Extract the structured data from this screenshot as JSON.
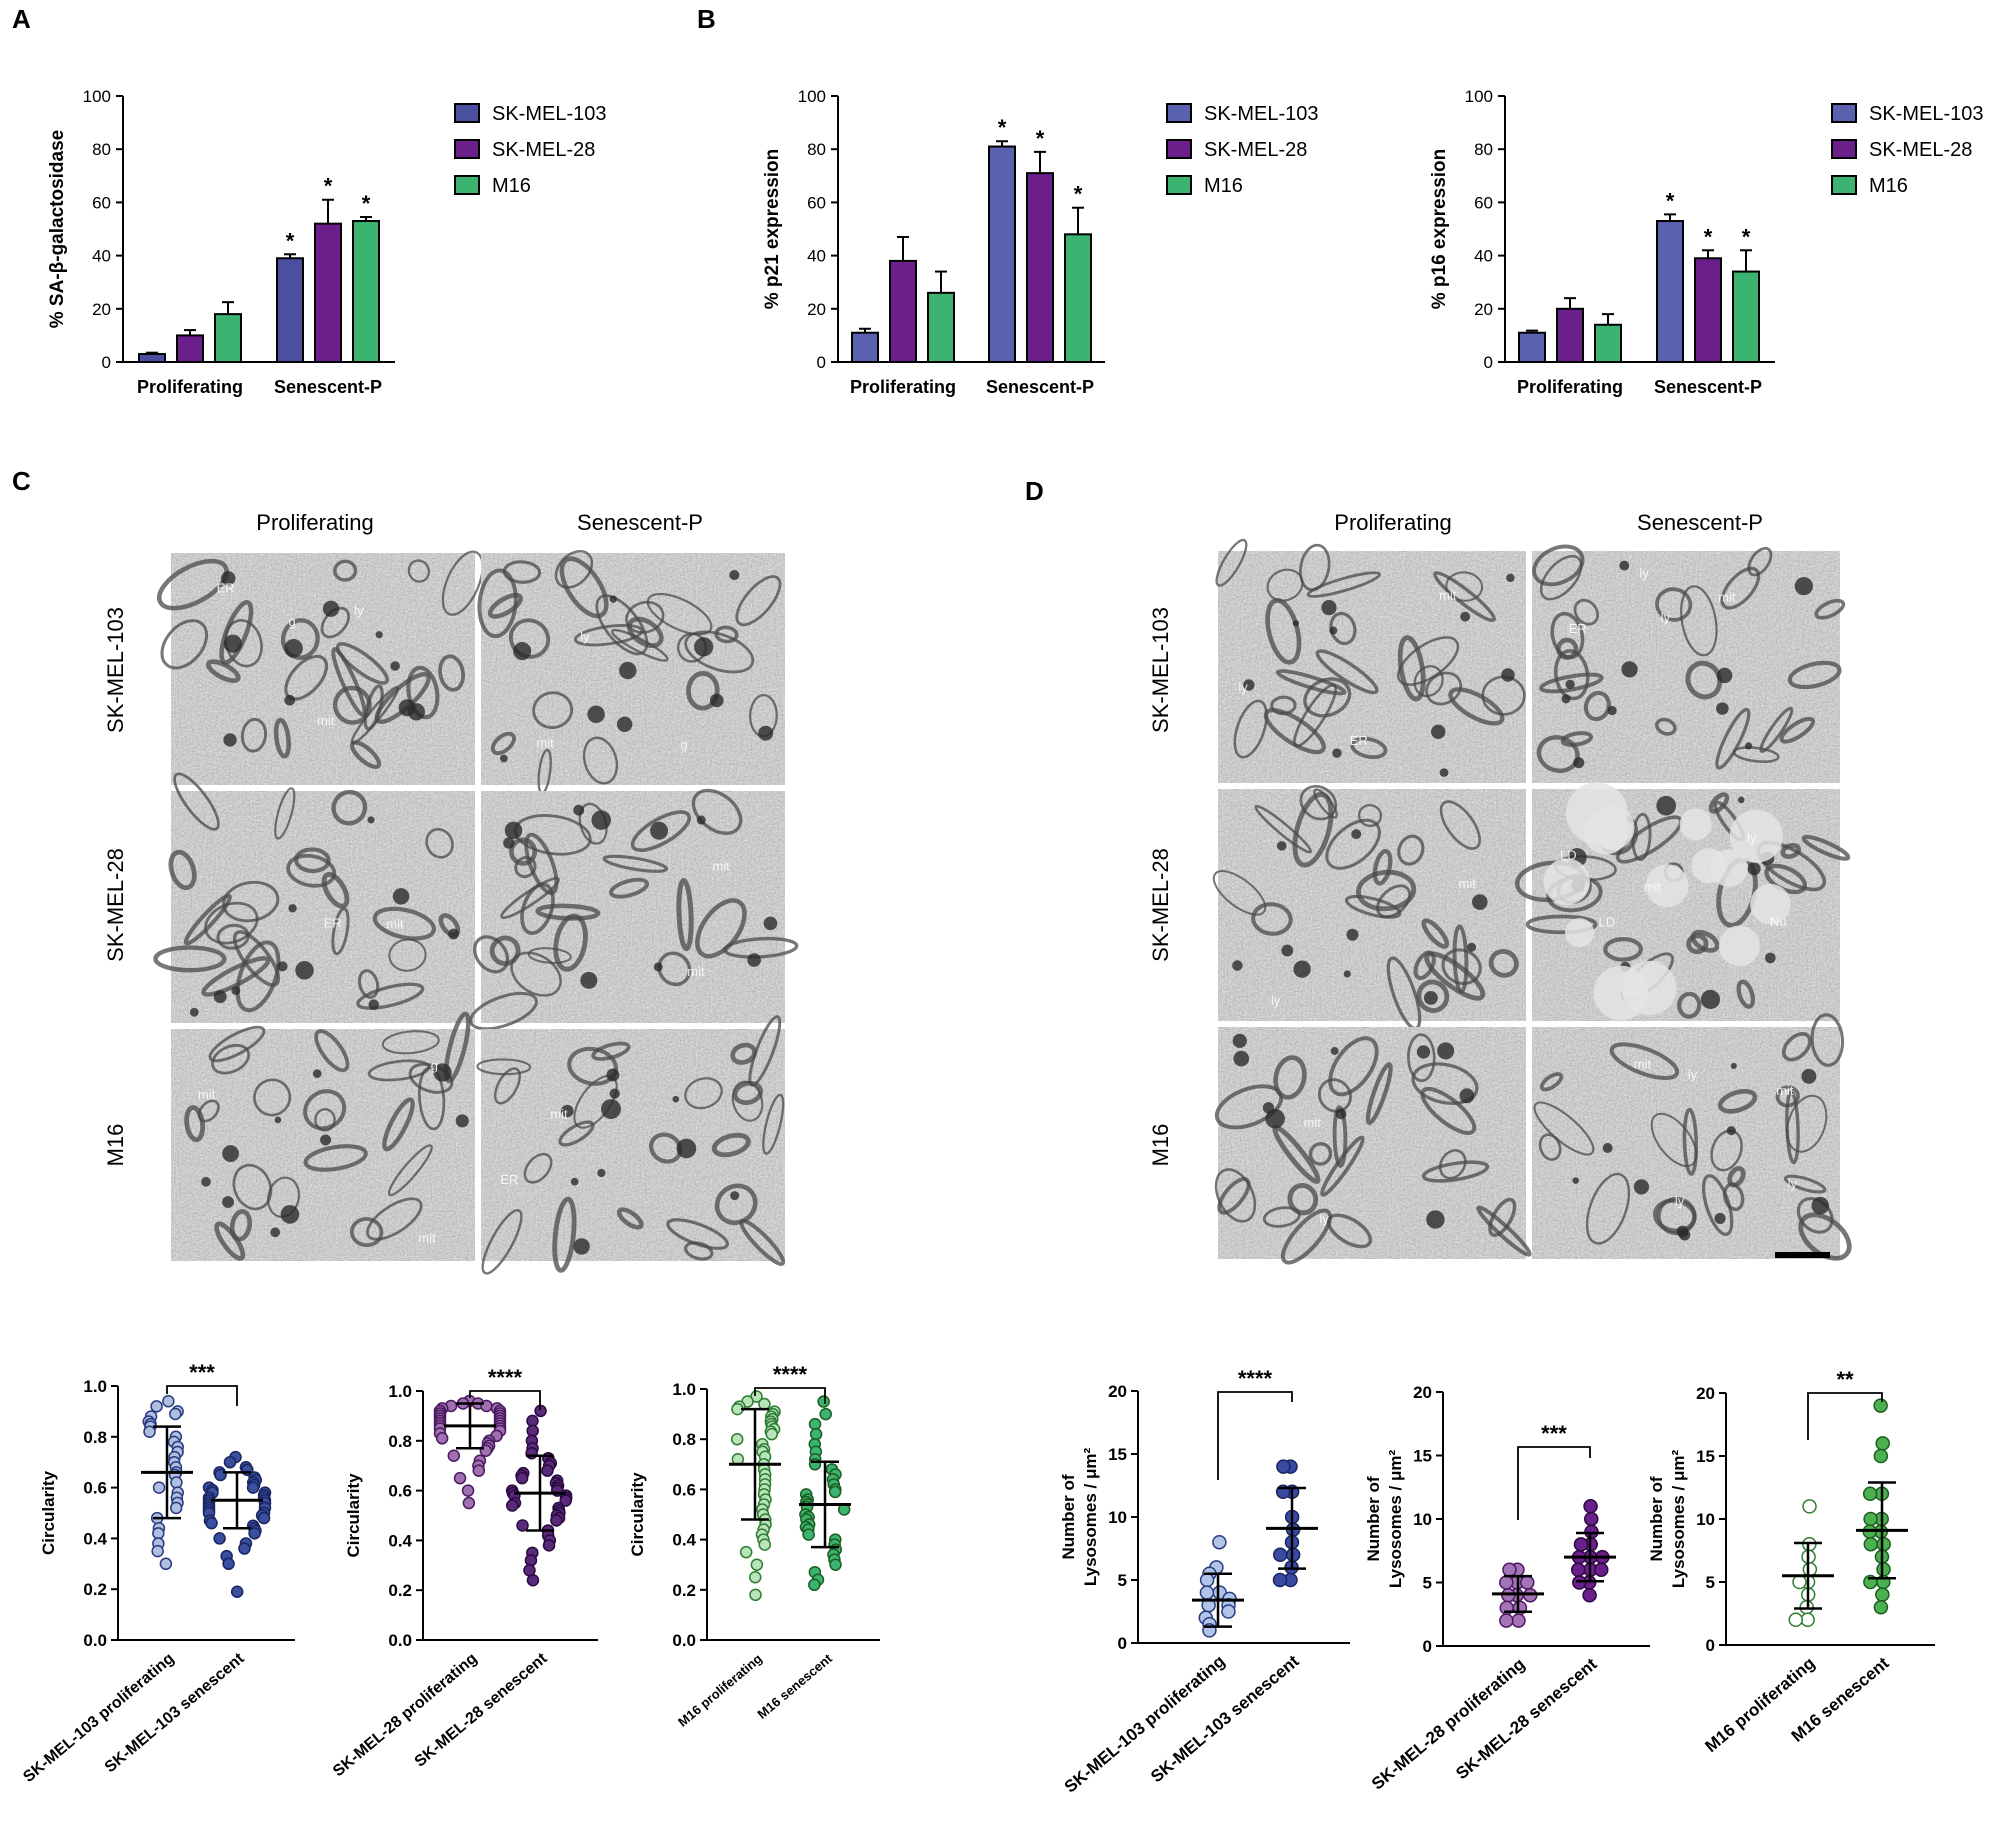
{
  "panels": {
    "A": {
      "letter": "A"
    },
    "B": {
      "letter": "B"
    },
    "C": {
      "letter": "C",
      "col_labels": [
        "Proliferating",
        "Senescent-P"
      ],
      "row_labels": [
        "SK-MEL-103",
        "SK-MEL-28",
        "M16"
      ]
    },
    "D": {
      "letter": "D",
      "col_labels": [
        "Proliferating",
        "Senescent-P"
      ],
      "row_labels": [
        "SK-MEL-103",
        "SK-MEL-28",
        "M16"
      ]
    }
  },
  "em_annotations": {
    "C": [
      [
        "ER",
        "ly",
        "mit",
        "g"
      ],
      [
        "ly",
        "g",
        "mit"
      ],
      [
        "ER",
        "mit"
      ],
      [
        "mit",
        "mit"
      ],
      [
        "g",
        "mit",
        "mit"
      ],
      [
        "mit",
        "ER"
      ]
    ],
    "D": [
      [
        "ER",
        "ly",
        "mit"
      ],
      [
        "mit",
        "ER",
        "ly",
        "ly"
      ],
      [
        "mit",
        "ly"
      ],
      [
        "ly",
        "LD",
        "LD",
        "mit",
        "Nu"
      ],
      [
        "ly",
        "mit"
      ],
      [
        "ly",
        "mit",
        "ly",
        "ly",
        "mit"
      ]
    ]
  },
  "colors": {
    "sk103": "#4a4fa0",
    "sk28": "#6a1f8a",
    "m16": "#3cb371"
  },
  "chart_data": [
    {
      "id": "A",
      "type": "bar",
      "categories": [
        "Proliferating",
        "Senescent-P"
      ],
      "ylabel": "% SA-β-galactosidase",
      "ylim": [
        0,
        100
      ],
      "yticks": [
        0,
        20,
        40,
        60,
        80,
        100
      ],
      "series": [
        {
          "name": "SK-MEL-103",
          "color": "#4a4fa0",
          "values": [
            3,
            39
          ],
          "errors": [
            0.5,
            1.5
          ],
          "sig": [
            "",
            "*"
          ]
        },
        {
          "name": "SK-MEL-28",
          "color": "#6a1f8a",
          "values": [
            10,
            52
          ],
          "errors": [
            2,
            9
          ],
          "sig": [
            "",
            "*"
          ]
        },
        {
          "name": "M16",
          "color": "#3cb371",
          "values": [
            18,
            53
          ],
          "errors": [
            4.5,
            1.5
          ],
          "sig": [
            "",
            "*"
          ]
        }
      ],
      "legend": "right"
    },
    {
      "id": "B1",
      "type": "bar",
      "categories": [
        "Proliferating",
        "Senescent-P"
      ],
      "ylabel": "% p21 expression",
      "ylim": [
        0,
        100
      ],
      "yticks": [
        0,
        20,
        40,
        60,
        80,
        100
      ],
      "series": [
        {
          "name": "SK-MEL-103",
          "color": "#5a62b0",
          "values": [
            11,
            81
          ],
          "errors": [
            1.5,
            2
          ],
          "sig": [
            "",
            "*"
          ]
        },
        {
          "name": "SK-MEL-28",
          "color": "#6a1f8a",
          "values": [
            38,
            71
          ],
          "errors": [
            9,
            8
          ],
          "sig": [
            "",
            "*"
          ]
        },
        {
          "name": "M16",
          "color": "#3cb371",
          "values": [
            26,
            48
          ],
          "errors": [
            8,
            10
          ],
          "sig": [
            "",
            "*"
          ]
        }
      ],
      "legend": "right"
    },
    {
      "id": "B2",
      "type": "bar",
      "categories": [
        "Proliferating",
        "Senescent-P"
      ],
      "ylabel": "% p16 expression",
      "ylim": [
        0,
        100
      ],
      "yticks": [
        0,
        20,
        40,
        60,
        80,
        100
      ],
      "series": [
        {
          "name": "SK-MEL-103",
          "color": "#5a62b0",
          "values": [
            11,
            53
          ],
          "errors": [
            0.8,
            2.5
          ],
          "sig": [
            "",
            "*"
          ]
        },
        {
          "name": "SK-MEL-28",
          "color": "#6a1f8a",
          "values": [
            20,
            39
          ],
          "errors": [
            4,
            3
          ],
          "sig": [
            "",
            "*"
          ]
        },
        {
          "name": "M16",
          "color": "#3cb371",
          "values": [
            14,
            34
          ],
          "errors": [
            4,
            8
          ],
          "sig": [
            "",
            "*"
          ]
        }
      ],
      "legend": "right"
    },
    {
      "id": "C1",
      "type": "scatter",
      "categories": [
        "SK-MEL-103 proliferating",
        "SK-MEL-103 senescent"
      ],
      "ylabel": "Circularity",
      "ylim": [
        0,
        1.0
      ],
      "yticks": [
        0.0,
        0.2,
        0.4,
        0.6,
        0.8,
        1.0
      ],
      "ytick_labels": [
        "0.0",
        "0.2",
        "0.4",
        "0.6",
        "0.8",
        "1.0"
      ],
      "groups": [
        {
          "fill": "#aebfe0",
          "edge": "#2a3a80",
          "mean": 0.66,
          "sd": 0.18,
          "values": [
            0.94,
            0.92,
            0.9,
            0.89,
            0.88,
            0.86,
            0.85,
            0.84,
            0.82,
            0.8,
            0.78,
            0.76,
            0.74,
            0.72,
            0.7,
            0.68,
            0.66,
            0.65,
            0.62,
            0.6,
            0.58,
            0.56,
            0.54,
            0.52,
            0.48,
            0.44,
            0.42,
            0.38,
            0.35,
            0.3
          ]
        },
        {
          "fill": "#3a4fa0",
          "edge": "#1a2560",
          "mean": 0.55,
          "sd": 0.11,
          "values": [
            0.72,
            0.7,
            0.68,
            0.67,
            0.66,
            0.65,
            0.64,
            0.63,
            0.62,
            0.61,
            0.6,
            0.6,
            0.59,
            0.58,
            0.58,
            0.57,
            0.56,
            0.56,
            0.55,
            0.55,
            0.54,
            0.54,
            0.53,
            0.52,
            0.52,
            0.51,
            0.5,
            0.5,
            0.49,
            0.48,
            0.47,
            0.46,
            0.45,
            0.44,
            0.43,
            0.42,
            0.4,
            0.38,
            0.36,
            0.33,
            0.3,
            0.19
          ]
        }
      ],
      "sig": "***"
    },
    {
      "id": "C2",
      "type": "scatter",
      "categories": [
        "SK-MEL-28 proliferating",
        "SK-MEL-28 senescent"
      ],
      "ylabel": "Circularity",
      "ylim": [
        0,
        1.0
      ],
      "yticks": [
        0.0,
        0.2,
        0.4,
        0.6,
        0.8,
        1.0
      ],
      "ytick_labels": [
        "0.0",
        "0.2",
        "0.4",
        "0.6",
        "0.8",
        "1.0"
      ],
      "groups": [
        {
          "fill": "#a070b0",
          "edge": "#4a1a60",
          "mean": 0.86,
          "sd": 0.09,
          "values": [
            0.96,
            0.95,
            0.95,
            0.94,
            0.94,
            0.93,
            0.93,
            0.92,
            0.92,
            0.92,
            0.91,
            0.91,
            0.9,
            0.9,
            0.9,
            0.89,
            0.89,
            0.88,
            0.88,
            0.87,
            0.87,
            0.86,
            0.86,
            0.85,
            0.85,
            0.84,
            0.83,
            0.82,
            0.81,
            0.8,
            0.79,
            0.78,
            0.77,
            0.76,
            0.74,
            0.72,
            0.7,
            0.68,
            0.65,
            0.6,
            0.55
          ]
        },
        {
          "fill": "#5a2a7a",
          "edge": "#2a0a40",
          "mean": 0.59,
          "sd": 0.15,
          "values": [
            0.92,
            0.88,
            0.84,
            0.8,
            0.77,
            0.75,
            0.73,
            0.71,
            0.7,
            0.68,
            0.67,
            0.66,
            0.65,
            0.64,
            0.63,
            0.62,
            0.61,
            0.6,
            0.6,
            0.59,
            0.58,
            0.58,
            0.57,
            0.56,
            0.55,
            0.54,
            0.53,
            0.52,
            0.51,
            0.5,
            0.49,
            0.48,
            0.46,
            0.44,
            0.42,
            0.4,
            0.38,
            0.35,
            0.32,
            0.28,
            0.24
          ]
        }
      ],
      "sig": "****"
    },
    {
      "id": "C3",
      "type": "scatter",
      "categories": [
        "M16 proliferating",
        "M16 senescent"
      ],
      "ylabel": "Circularity",
      "ylim": [
        0,
        1.0
      ],
      "yticks": [
        0.0,
        0.2,
        0.4,
        0.6,
        0.8,
        1.0
      ],
      "ytick_labels": [
        "0.0",
        "0.2",
        "0.4",
        "0.6",
        "0.8",
        "1.0"
      ],
      "groups": [
        {
          "fill": "#b9e3b9",
          "edge": "#2e7d32",
          "mean": 0.7,
          "sd": 0.22,
          "values": [
            0.97,
            0.95,
            0.94,
            0.93,
            0.92,
            0.91,
            0.9,
            0.89,
            0.88,
            0.87,
            0.86,
            0.85,
            0.84,
            0.83,
            0.82,
            0.8,
            0.78,
            0.76,
            0.75,
            0.73,
            0.72,
            0.7,
            0.68,
            0.66,
            0.64,
            0.62,
            0.6,
            0.58,
            0.56,
            0.54,
            0.52,
            0.5,
            0.48,
            0.46,
            0.44,
            0.42,
            0.4,
            0.38,
            0.35,
            0.3,
            0.25,
            0.18
          ]
        },
        {
          "fill": "#3cb371",
          "edge": "#1b5e20",
          "mean": 0.54,
          "sd": 0.17,
          "values": [
            0.95,
            0.9,
            0.86,
            0.82,
            0.78,
            0.75,
            0.72,
            0.7,
            0.68,
            0.66,
            0.64,
            0.62,
            0.6,
            0.59,
            0.58,
            0.56,
            0.55,
            0.54,
            0.53,
            0.52,
            0.5,
            0.49,
            0.48,
            0.46,
            0.45,
            0.44,
            0.42,
            0.4,
            0.38,
            0.36,
            0.34,
            0.32,
            0.3,
            0.27,
            0.24,
            0.22
          ]
        }
      ],
      "sig": "****"
    },
    {
      "id": "D1",
      "type": "scatter",
      "categories": [
        "SK-MEL-103 proliferating",
        "SK-MEL-103 senescent"
      ],
      "ylabel": "Number of Lysosomes / μm²",
      "ylim": [
        0,
        20
      ],
      "yticks": [
        0,
        5,
        10,
        15,
        20
      ],
      "ytick_labels": [
        "0",
        "5",
        "10",
        "15",
        "20"
      ],
      "groups": [
        {
          "fill": "#b0c4e8",
          "edge": "#2a3a80",
          "mean": 3.4,
          "sd": 2.1,
          "values": [
            8,
            6,
            5.5,
            5,
            4,
            4,
            3.5,
            3,
            3,
            2.5,
            2,
            1.5,
            1
          ]
        },
        {
          "fill": "#3a4aa0",
          "edge": "#1a2560",
          "mean": 9.1,
          "sd": 3.2,
          "values": [
            14,
            14,
            12,
            12,
            10,
            9,
            8,
            7,
            7,
            6,
            5,
            5
          ]
        }
      ],
      "sig": "****"
    },
    {
      "id": "D2",
      "type": "scatter",
      "categories": [
        "SK-MEL-28 proliferating",
        "SK-MEL-28 senescent"
      ],
      "ylabel": "Number of Lysosomes / μm²",
      "ylim": [
        0,
        20
      ],
      "yticks": [
        0,
        5,
        10,
        15,
        20
      ],
      "ytick_labels": [
        "0",
        "5",
        "10",
        "15",
        "20"
      ],
      "groups": [
        {
          "fill": "#a574b8",
          "edge": "#4a1a60",
          "mean": 4.1,
          "sd": 1.4,
          "values": [
            6,
            6,
            5,
            5,
            5,
            4,
            4,
            4,
            3,
            3,
            2,
            2
          ]
        },
        {
          "fill": "#6a1f8a",
          "edge": "#2a0a40",
          "mean": 7,
          "sd": 1.9,
          "values": [
            11,
            10,
            9,
            8,
            8,
            7,
            7,
            7,
            6,
            6,
            6,
            5,
            5,
            4
          ]
        }
      ],
      "sig": "***"
    },
    {
      "id": "D3",
      "type": "scatter",
      "categories": [
        "M16 proliferating",
        "M16 senescent"
      ],
      "ylabel": "Number of Lysosomes / μm²",
      "ylim": [
        0,
        20
      ],
      "yticks": [
        0,
        5,
        10,
        15,
        20
      ],
      "ytick_labels": [
        "0",
        "5",
        "10",
        "15",
        "20"
      ],
      "groups": [
        {
          "fill": "#ffffff",
          "edge": "#2e7d32",
          "mean": 5.5,
          "sd": 2.6,
          "values": [
            11,
            8,
            7,
            6,
            5,
            5,
            4,
            3,
            2,
            2
          ]
        },
        {
          "fill": "#4caf50",
          "edge": "#1b5e20",
          "mean": 9.1,
          "sd": 3.8,
          "values": [
            19,
            16,
            15,
            12,
            12,
            10,
            10,
            9,
            9,
            8,
            8,
            7,
            6,
            5,
            5,
            4,
            3
          ]
        }
      ],
      "sig": "**"
    }
  ]
}
